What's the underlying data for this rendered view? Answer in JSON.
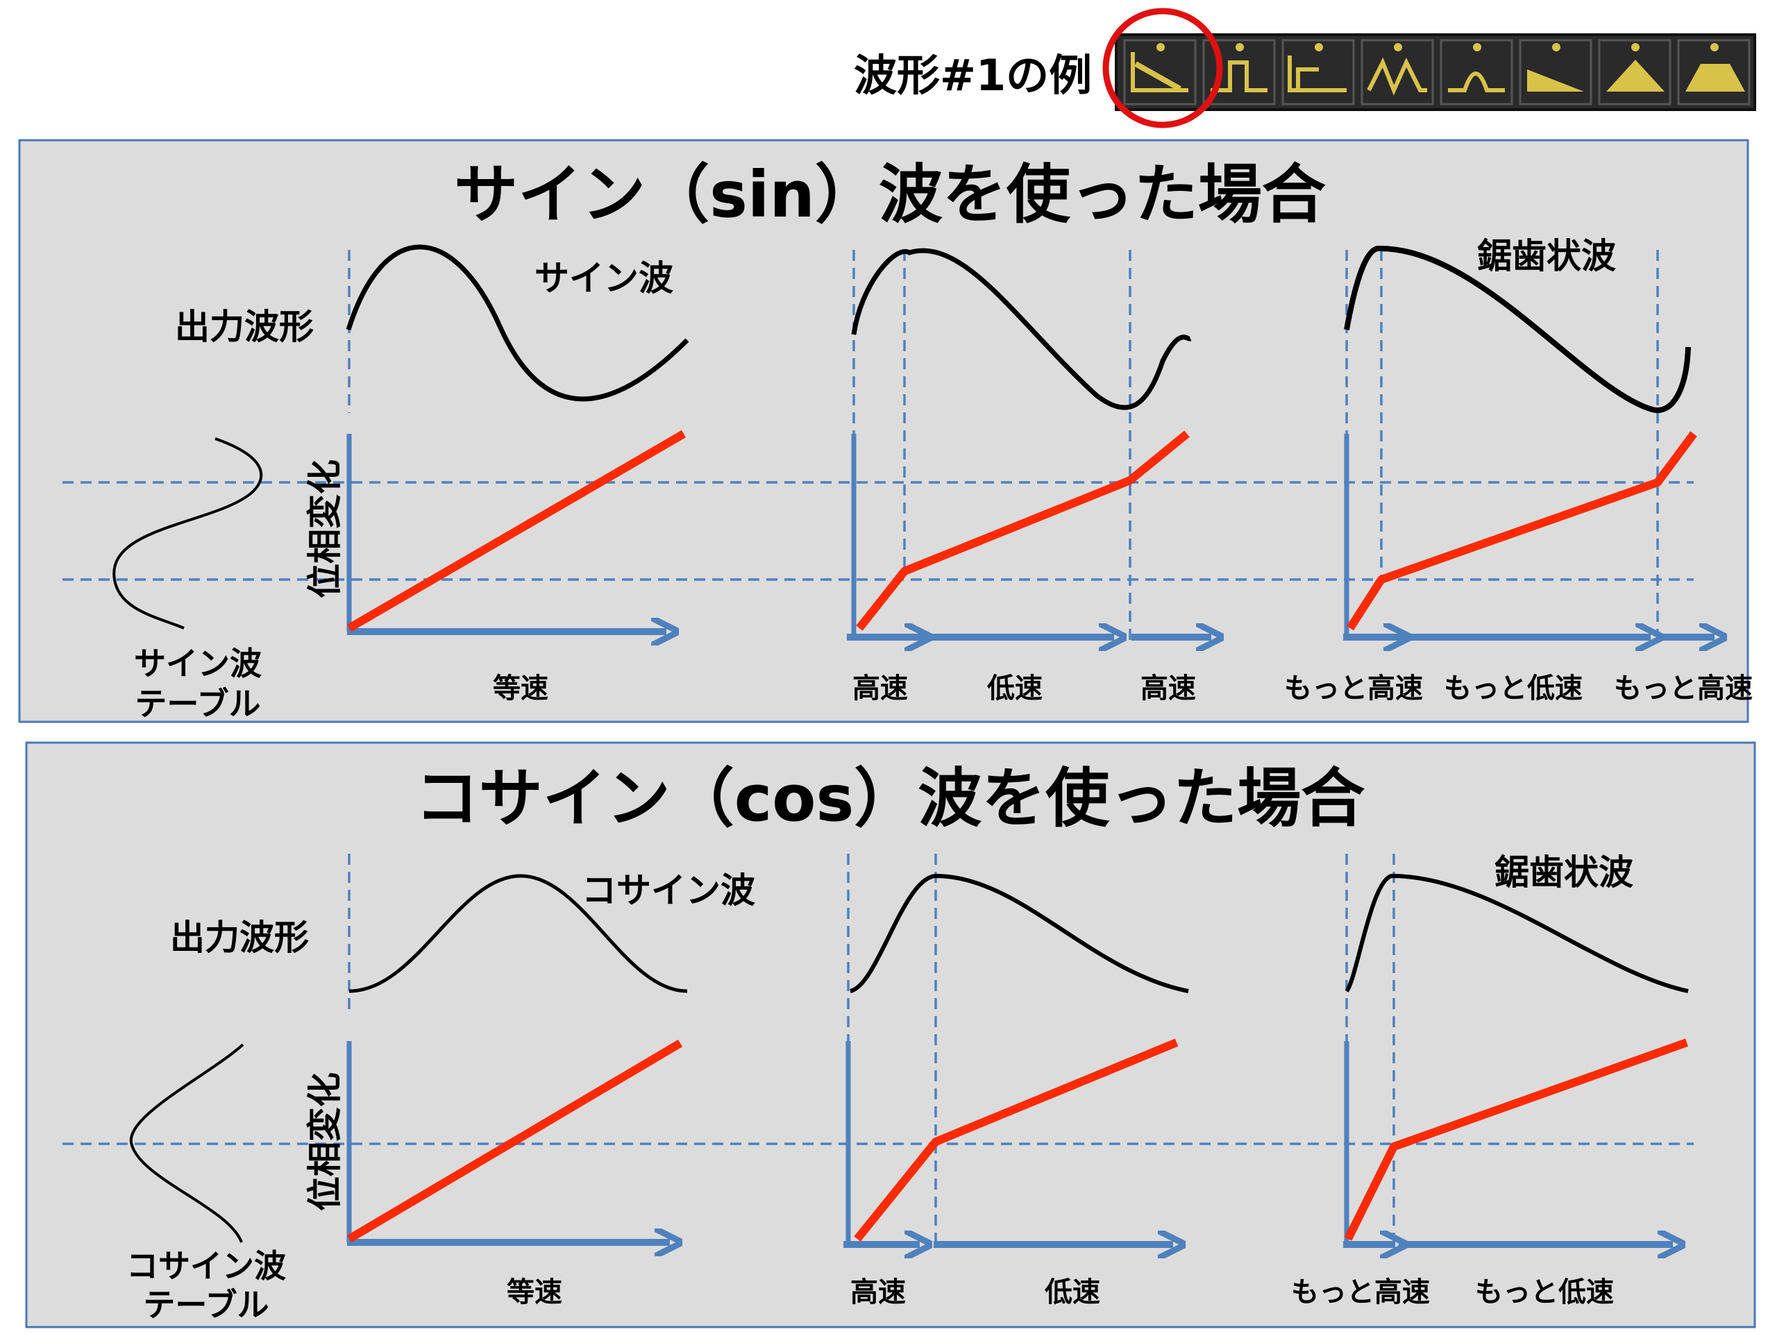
{
  "colors": {
    "panel_bg": "#dcdcdc",
    "panel_border": "#4a78b8",
    "axis": "#4f81bd",
    "phase_line": "#ff2a00",
    "curve": "#000000",
    "highlight_circle": "#e01010",
    "icon_strip_bg": "#2a2a2a",
    "icon_fg": "#d8c24a",
    "label_red": "#ff2200"
  },
  "header": {
    "label": "波形#1の例",
    "icons": [
      "ramp-icon",
      "pulse-icon",
      "step-icon",
      "double-peak-icon",
      "bump-icon",
      "slope-hill-icon",
      "triangle-icon",
      "trapezoid-icon"
    ],
    "highlighted_index": 0
  },
  "panels": [
    {
      "title": "サイン（sin）波を使った場合",
      "output_label": "出力波形",
      "phase_label": "位相変化",
      "table_label": [
        "サイン波",
        "テーブル"
      ],
      "wave_names": [
        "サイン波",
        "鋸歯状波"
      ],
      "sections": [
        {
          "speeds": [
            "等速"
          ]
        },
        {
          "speeds": [
            "高速",
            "低速",
            "高速"
          ]
        },
        {
          "speeds": [
            "もっと高速",
            "もっと低速",
            "もっと高速"
          ]
        }
      ]
    },
    {
      "title": "コサイン（cos）波を使った場合",
      "output_label": "出力波形",
      "phase_label": "位相変化",
      "table_label": [
        "コサイン波",
        "テーブル"
      ],
      "wave_names": [
        "コサイン波",
        "鋸歯状波"
      ],
      "sections": [
        {
          "speeds": [
            "等速"
          ]
        },
        {
          "speeds": [
            "高速",
            "低速"
          ]
        },
        {
          "speeds": [
            "もっと高速",
            "もっと低速"
          ]
        }
      ]
    }
  ]
}
